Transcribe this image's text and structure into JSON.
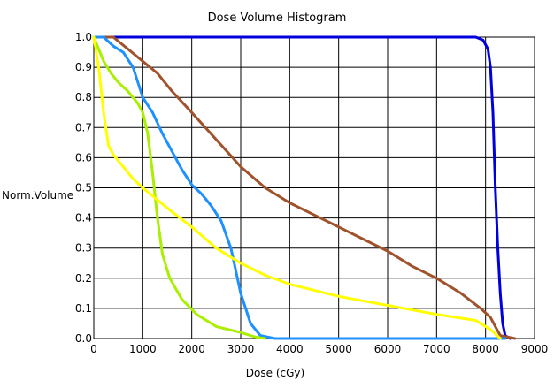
{
  "chart_data": {
    "type": "line",
    "title": "Dose Volume Histogram",
    "xlabel": "Dose (cGy)",
    "ylabel": "Norm.Volume",
    "xlim": [
      0,
      9000
    ],
    "ylim": [
      0,
      1
    ],
    "grid": true,
    "x_ticks": [
      "0",
      "1000",
      "2000",
      "3000",
      "4000",
      "5000",
      "6000",
      "7000",
      "8000",
      "9000"
    ],
    "y_ticks": [
      "0.0",
      "0.1",
      "0.2",
      "0.3",
      "0.4",
      "0.5",
      "0.6",
      "0.7",
      "0.8",
      "0.9",
      "1.0"
    ],
    "series": [
      {
        "color": "#0000dd",
        "points": [
          [
            0,
            1.0
          ],
          [
            7800,
            1.0
          ],
          [
            7950,
            0.99
          ],
          [
            8050,
            0.96
          ],
          [
            8100,
            0.9
          ],
          [
            8150,
            0.75
          ],
          [
            8200,
            0.5
          ],
          [
            8250,
            0.3
          ],
          [
            8300,
            0.15
          ],
          [
            8350,
            0.05
          ],
          [
            8400,
            0.01
          ],
          [
            8500,
            0.0
          ]
        ]
      },
      {
        "color": "#a0522d",
        "points": [
          [
            0,
            1.0
          ],
          [
            400,
            1.0
          ],
          [
            700,
            0.96
          ],
          [
            1000,
            0.92
          ],
          [
            1300,
            0.88
          ],
          [
            1600,
            0.82
          ],
          [
            2000,
            0.75
          ],
          [
            2500,
            0.66
          ],
          [
            3000,
            0.57
          ],
          [
            3500,
            0.5
          ],
          [
            4000,
            0.45
          ],
          [
            4500,
            0.41
          ],
          [
            5000,
            0.37
          ],
          [
            5500,
            0.33
          ],
          [
            6000,
            0.29
          ],
          [
            6500,
            0.24
          ],
          [
            7000,
            0.2
          ],
          [
            7500,
            0.15
          ],
          [
            7900,
            0.1
          ],
          [
            8100,
            0.07
          ],
          [
            8200,
            0.04
          ],
          [
            8300,
            0.01
          ],
          [
            8600,
            0.0
          ]
        ]
      },
      {
        "color": "#1e90ff",
        "points": [
          [
            0,
            1.0
          ],
          [
            200,
            1.0
          ],
          [
            400,
            0.97
          ],
          [
            600,
            0.95
          ],
          [
            800,
            0.9
          ],
          [
            1000,
            0.8
          ],
          [
            1200,
            0.75
          ],
          [
            1400,
            0.68
          ],
          [
            1600,
            0.62
          ],
          [
            1800,
            0.56
          ],
          [
            2000,
            0.51
          ],
          [
            2200,
            0.48
          ],
          [
            2400,
            0.44
          ],
          [
            2600,
            0.39
          ],
          [
            2800,
            0.3
          ],
          [
            3000,
            0.15
          ],
          [
            3200,
            0.05
          ],
          [
            3400,
            0.01
          ],
          [
            3700,
            0.0
          ],
          [
            8400,
            0.0
          ]
        ]
      },
      {
        "color": "#aaee00",
        "points": [
          [
            0,
            1.0
          ],
          [
            100,
            0.96
          ],
          [
            200,
            0.92
          ],
          [
            350,
            0.88
          ],
          [
            500,
            0.85
          ],
          [
            700,
            0.82
          ],
          [
            900,
            0.78
          ],
          [
            1000,
            0.75
          ],
          [
            1100,
            0.68
          ],
          [
            1200,
            0.55
          ],
          [
            1300,
            0.4
          ],
          [
            1400,
            0.28
          ],
          [
            1550,
            0.2
          ],
          [
            1800,
            0.13
          ],
          [
            2100,
            0.08
          ],
          [
            2500,
            0.04
          ],
          [
            3000,
            0.02
          ],
          [
            3300,
            0.005
          ],
          [
            3500,
            0.0
          ]
        ]
      },
      {
        "color": "#ffff00",
        "points": [
          [
            0,
            1.0
          ],
          [
            100,
            0.9
          ],
          [
            200,
            0.75
          ],
          [
            300,
            0.64
          ],
          [
            400,
            0.61
          ],
          [
            600,
            0.57
          ],
          [
            800,
            0.53
          ],
          [
            1000,
            0.5
          ],
          [
            1300,
            0.46
          ],
          [
            1600,
            0.42
          ],
          [
            2000,
            0.37
          ],
          [
            2500,
            0.3
          ],
          [
            3000,
            0.25
          ],
          [
            3500,
            0.21
          ],
          [
            4000,
            0.18
          ],
          [
            5000,
            0.14
          ],
          [
            6000,
            0.11
          ],
          [
            7000,
            0.08
          ],
          [
            7800,
            0.06
          ],
          [
            8100,
            0.03
          ],
          [
            8300,
            0.0
          ]
        ]
      }
    ]
  }
}
